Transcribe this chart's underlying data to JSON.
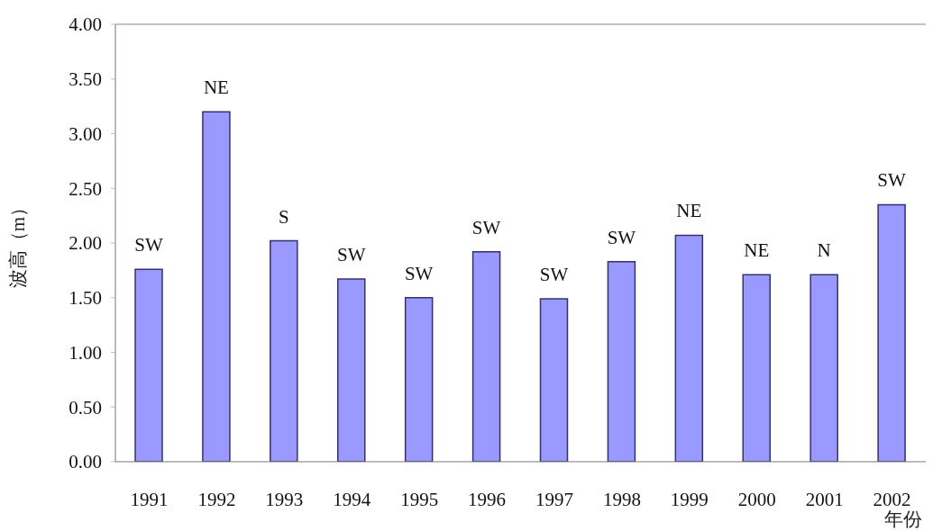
{
  "chart_data": {
    "type": "bar",
    "xlabel": "年份",
    "ylabel": "波高（m）",
    "categories": [
      "1991",
      "1992",
      "1993",
      "1994",
      "1995",
      "1996",
      "1997",
      "1998",
      "1999",
      "2000",
      "2001",
      "2002"
    ],
    "values": [
      1.76,
      3.2,
      2.02,
      1.67,
      1.5,
      1.92,
      1.49,
      1.83,
      2.07,
      1.71,
      1.71,
      2.35
    ],
    "value_labels": [
      "SW",
      "NE",
      "S",
      "SW",
      "SW",
      "SW",
      "SW",
      "SW",
      "NE",
      "NE",
      "N",
      "SW"
    ],
    "color": "#9999ff",
    "ylim": [
      0,
      4
    ],
    "yticks": [
      {
        "value": 0,
        "label": "0.00"
      },
      {
        "value": 0.5,
        "label": "0.50"
      },
      {
        "value": 1,
        "label": "1.00"
      },
      {
        "value": 1.5,
        "label": "1.50"
      },
      {
        "value": 2,
        "label": "2.00"
      },
      {
        "value": 2.5,
        "label": "2.50"
      },
      {
        "value": 3,
        "label": "3.00"
      },
      {
        "value": 3.5,
        "label": "3.50"
      },
      {
        "value": 4,
        "label": "4.00"
      }
    ],
    "grid": false,
    "legend": false
  }
}
